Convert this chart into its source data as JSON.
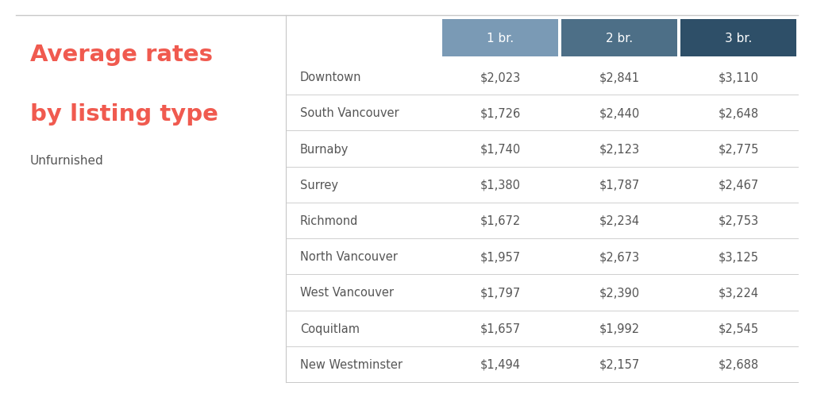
{
  "title_line1": "Average rates",
  "title_line2": "by listing type",
  "subtitle": "Unfurnished",
  "title_color": "#F05A4F",
  "subtitle_color": "#555555",
  "header_labels": [
    "1 br.",
    "2 br.",
    "3 br."
  ],
  "header_bg_colors": [
    "#7a9ab5",
    "#4d6f87",
    "#2e4f68"
  ],
  "header_text_color": "#ffffff",
  "neighborhoods": [
    "Downtown",
    "South Vancouver",
    "Burnaby",
    "Surrey",
    "Richmond",
    "North Vancouver",
    "West Vancouver",
    "Coquitlam",
    "New Westminster"
  ],
  "values": [
    [
      2023,
      2841,
      3110
    ],
    [
      1726,
      2440,
      2648
    ],
    [
      1740,
      2123,
      2775
    ],
    [
      1380,
      1787,
      2467
    ],
    [
      1672,
      2234,
      2753
    ],
    [
      1957,
      2673,
      3125
    ],
    [
      1797,
      2390,
      3224
    ],
    [
      1657,
      1992,
      2545
    ],
    [
      1494,
      2157,
      2688
    ]
  ],
  "row_text_color": "#555555",
  "value_text_color": "#555555",
  "background_color": "#ffffff",
  "divider_color": "#c8c8c8",
  "title_color_secondary": "#F05A4F",
  "title_fontsize": 21,
  "subtitle_fontsize": 11,
  "header_fontsize": 11,
  "row_fontsize": 10.5,
  "value_fontsize": 10.5
}
